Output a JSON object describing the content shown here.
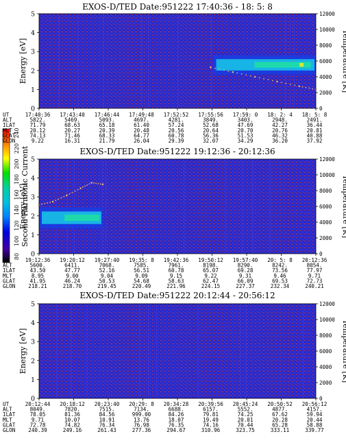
{
  "colors": {
    "background_field": "#2a2ac8",
    "noise_red": "#b43250",
    "noise_blue": "#3a3ae6",
    "band_cyan": "#18b4e6",
    "band_core": "#20e0a0",
    "band_yellow": "#d8e830",
    "temp_dots": "#e8b070"
  },
  "colorbar": {
    "label": "Second Harmonic Current",
    "ticks": [
      "240",
      "220",
      "200",
      "180",
      "160",
      "140",
      "120",
      "100",
      "80"
    ],
    "stops": [
      "#ff0000",
      "#ff8000",
      "#ffff00",
      "#00e000",
      "#00d0a0",
      "#00c0e0",
      "#0080ff",
      "#0000e0",
      "#4000a0",
      "#000000"
    ]
  },
  "chart_data": [
    {
      "type": "heatmap",
      "title": "EXOS-D/TED   Date:951222   17:40:36 - 18: 5: 8",
      "ylabel": "Energy [eV]",
      "y2label": "Temperature [K]",
      "ylim": [
        0,
        5
      ],
      "y2lim": [
        0,
        12000
      ],
      "yticks": [
        "0",
        "1",
        "2",
        "3",
        "4",
        "5"
      ],
      "y2ticks": [
        "0",
        "2000",
        "4000",
        "6000",
        "8000",
        "10000",
        "12000"
      ],
      "band": {
        "start_frac": 0.63,
        "end_frac": 1.0,
        "center_ev": 2.3,
        "half_width_ev": 0.5
      },
      "temperature_trace": [
        {
          "t": 0.62,
          "temp": 5200
        },
        {
          "t": 0.7,
          "temp": 4600
        },
        {
          "t": 0.78,
          "temp": 4000
        },
        {
          "t": 0.86,
          "temp": 3400
        },
        {
          "t": 0.94,
          "temp": 2800
        },
        {
          "t": 1.0,
          "temp": 2400
        }
      ],
      "row_labels": [
        "UT",
        "ALT",
        "ILAT",
        "MLT",
        "GLAT",
        "GLON"
      ],
      "table": [
        [
          "17:40:36",
          "17:43:40",
          "17:46:44",
          "17:49:48",
          "17:52:52",
          "17:55:56",
          "17:59: 0",
          "18: 2: 4",
          "18: 5: 8"
        ],
        [
          "5822.",
          "5469.",
          "5093.",
          "4697.",
          "4281.",
          "3849.",
          "3403.",
          "2948.",
          "2491."
        ],
        [
          "71.79",
          "68.63",
          "65.18",
          "61.40",
          "57.24",
          "52.68",
          "47.69",
          "42.27",
          "36.44"
        ],
        [
          "20.12",
          "20.27",
          "20.39",
          "20.48",
          "20.56",
          "20.64",
          "20.70",
          "20.76",
          "20.81"
        ],
        [
          "74.13",
          "71.46",
          "68.33",
          "64.77",
          "60.78",
          "56.36",
          "51.53",
          "46.32",
          "40.88"
        ],
        [
          "9.22",
          "16.31",
          "21.79",
          "26.04",
          "29.39",
          "32.07",
          "34.29",
          "36.20",
          "37.92"
        ]
      ]
    },
    {
      "type": "heatmap",
      "title": "EXOS-D/TED   Date:951222   19:12:36 - 20:12:36",
      "ylabel": "Energy [eV]",
      "y2label": "Temperature [K]",
      "ylim": [
        0,
        5
      ],
      "y2lim": [
        0,
        12000
      ],
      "yticks": [
        "0",
        "1",
        "2",
        "3",
        "4",
        "5"
      ],
      "y2ticks": [
        "0",
        "2000",
        "4000",
        "6000",
        "8000",
        "10000",
        "12000"
      ],
      "band": {
        "start_frac": 0.0,
        "end_frac": 0.23,
        "center_ev": 1.9,
        "half_width_ev": 0.55
      },
      "temperature_trace": [
        {
          "t": 0.0,
          "temp": 6200
        },
        {
          "t": 0.05,
          "temp": 6600
        },
        {
          "t": 0.1,
          "temp": 7400
        },
        {
          "t": 0.15,
          "temp": 8300
        },
        {
          "t": 0.19,
          "temp": 9000
        },
        {
          "t": 0.23,
          "temp": 8800
        }
      ],
      "row_labels": [
        "UT",
        "ALT",
        "ILAT",
        "MLT",
        "GLAT",
        "GLON"
      ],
      "table": [
        [
          "19:12:36",
          "19:20:12",
          "19:27:40",
          "19:35: 8",
          "19:42:36",
          "19:50:12",
          "19:57:40",
          "20: 5: 8",
          "20:12:36"
        ],
        [
          "5600.",
          "6411.",
          "7068.",
          "7585.",
          "7961.",
          "8198.",
          "8290.",
          "8242.",
          "8054."
        ],
        [
          "43.50",
          "47.77",
          "52.16",
          "56.51",
          "60.78",
          "65.07",
          "69.28",
          "73.56",
          "77.97"
        ],
        [
          "8.95",
          "9.00",
          "9.04",
          "9.09",
          "9.15",
          "9.22",
          "9.31",
          "9.46",
          "9.71"
        ],
        [
          "41.95",
          "46.24",
          "50.53",
          "54.68",
          "58.63",
          "62.47",
          "66.09",
          "69.53",
          "72.73"
        ],
        [
          "218.21",
          "218.70",
          "219.45",
          "220.49",
          "221.96",
          "224.15",
          "227.37",
          "232.34",
          "240.21"
        ]
      ]
    },
    {
      "type": "heatmap",
      "title": "EXOS-D/TED   Date:951222   20:12:44 - 20:56:12",
      "ylabel": "Energy [eV]",
      "y2label": "Temperature [K]",
      "ylim": [
        0,
        5
      ],
      "y2lim": [
        0,
        12000
      ],
      "yticks": [
        "0",
        "1",
        "2",
        "3",
        "4",
        "5"
      ],
      "y2ticks": [
        "0",
        "2000",
        "4000",
        "6000",
        "8000",
        "10000",
        "12000"
      ],
      "band": null,
      "temperature_trace": [],
      "row_labels": [
        "UT",
        "ALT",
        "ILAT",
        "MLT",
        "GLAT",
        "GLON"
      ],
      "table": [
        [
          "20:12:44",
          "20:18:12",
          "20:23:40",
          "20:29: 8",
          "20:34:28",
          "20:39:56",
          "20:45:24",
          "20:50:52",
          "20:56:12"
        ],
        [
          "8049.",
          "7820.",
          "7515.",
          "7134.",
          "6688.",
          "6157.",
          "5552.",
          "4877.",
          "4157."
        ],
        [
          "78.05",
          "81.36",
          "84.56",
          "999.00",
          "84.26",
          "79.81",
          "74.25",
          "67.62",
          "59.94"
        ],
        [
          "9.71",
          "10.07",
          "10.91",
          "13.76",
          "18.07",
          "19.49",
          "20.01",
          "20.28",
          "20.44"
        ],
        [
          "72.78",
          "74.82",
          "76.34",
          "76.98",
          "76.35",
          "74.16",
          "70.44",
          "65.28",
          "58.88"
        ],
        [
          "240.39",
          "249.16",
          "261.43",
          "277.36",
          "294.67",
          "310.96",
          "323.75",
          "333.11",
          "339.77"
        ]
      ]
    }
  ]
}
